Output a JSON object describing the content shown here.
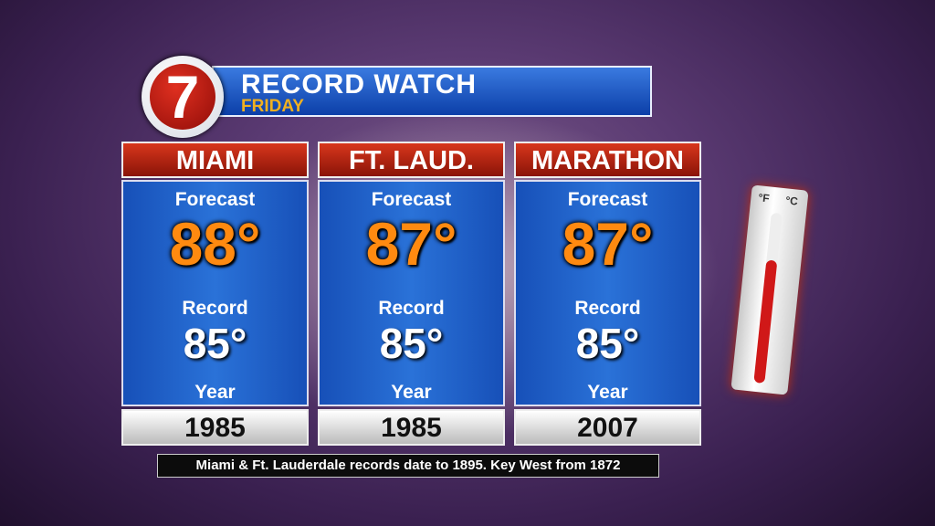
{
  "header": {
    "logo": "7",
    "title": "RECORD WATCH",
    "subtitle": "FRIDAY"
  },
  "columns": [
    {
      "city": "MIAMI",
      "forecast_label": "Forecast",
      "forecast": "88°",
      "record_label": "Record",
      "record": "85°",
      "year_label": "Year",
      "year": "1985"
    },
    {
      "city": "FT. LAUD.",
      "forecast_label": "Forecast",
      "forecast": "87°",
      "record_label": "Record",
      "record": "85°",
      "year_label": "Year",
      "year": "1985"
    },
    {
      "city": "MARATHON",
      "forecast_label": "Forecast",
      "forecast": "87°",
      "record_label": "Record",
      "record": "85°",
      "year_label": "Year",
      "year": "2007"
    }
  ],
  "footer": {
    "note": "Miami & Ft. Lauderdale records date to 1895. Key West from 1872"
  },
  "thermometer": {
    "f_label": "°F",
    "c_label": "°C"
  }
}
